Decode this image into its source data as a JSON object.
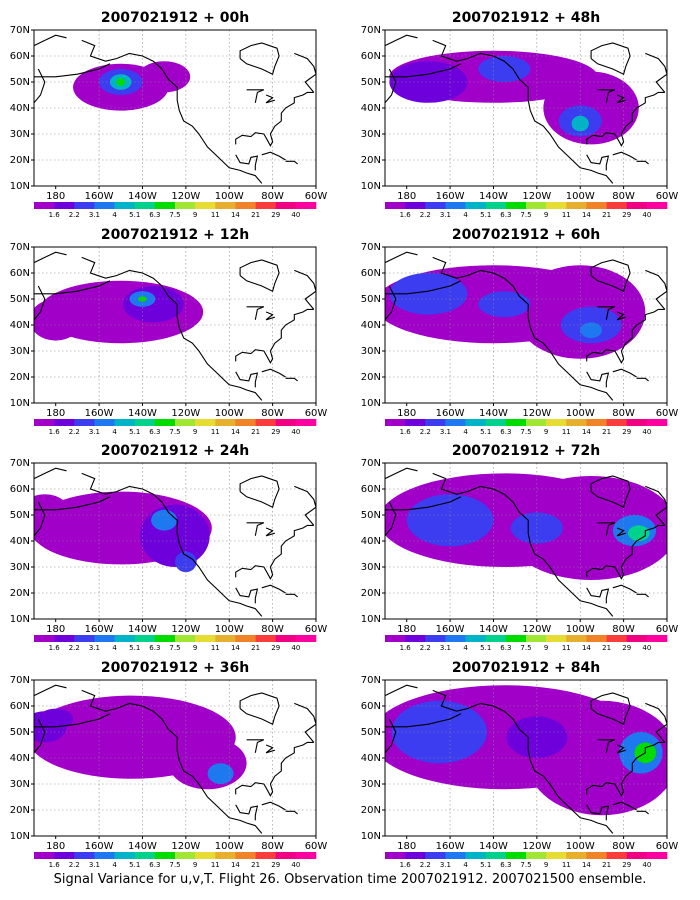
{
  "figure": {
    "caption": "Signal Variance for u,v,T. Flight 26. Observation time 2007021912. 2007021500 ensemble.",
    "lon_ticks": [
      "180",
      "160W",
      "140W",
      "120W",
      "100W",
      "80W",
      "60W"
    ],
    "lat_ticks": [
      "10N",
      "20N",
      "30N",
      "40N",
      "50N",
      "60N",
      "70N"
    ],
    "colorbar": {
      "labels": [
        "1.6",
        "2.2",
        "3.1",
        "4",
        "5.1",
        "6.3",
        "7.5",
        "9",
        "11",
        "14",
        "21",
        "29",
        "40"
      ],
      "colors": [
        "#a000c8",
        "#6e00dc",
        "#3c3cf0",
        "#1e78f0",
        "#00b4c8",
        "#00d28c",
        "#00dc00",
        "#a0e632",
        "#e6dc32",
        "#e6af2d",
        "#f08228",
        "#fa3c3c",
        "#f00082"
      ]
    },
    "panels": [
      {
        "title": "2007021912 + 00h"
      },
      {
        "title": "2007021912 + 48h"
      },
      {
        "title": "2007021912 + 12h"
      },
      {
        "title": "2007021912 + 60h"
      },
      {
        "title": "2007021912 + 24h"
      },
      {
        "title": "2007021912 + 72h"
      },
      {
        "title": "2007021912 + 36h"
      },
      {
        "title": "2007021912 + 84h"
      }
    ]
  }
}
